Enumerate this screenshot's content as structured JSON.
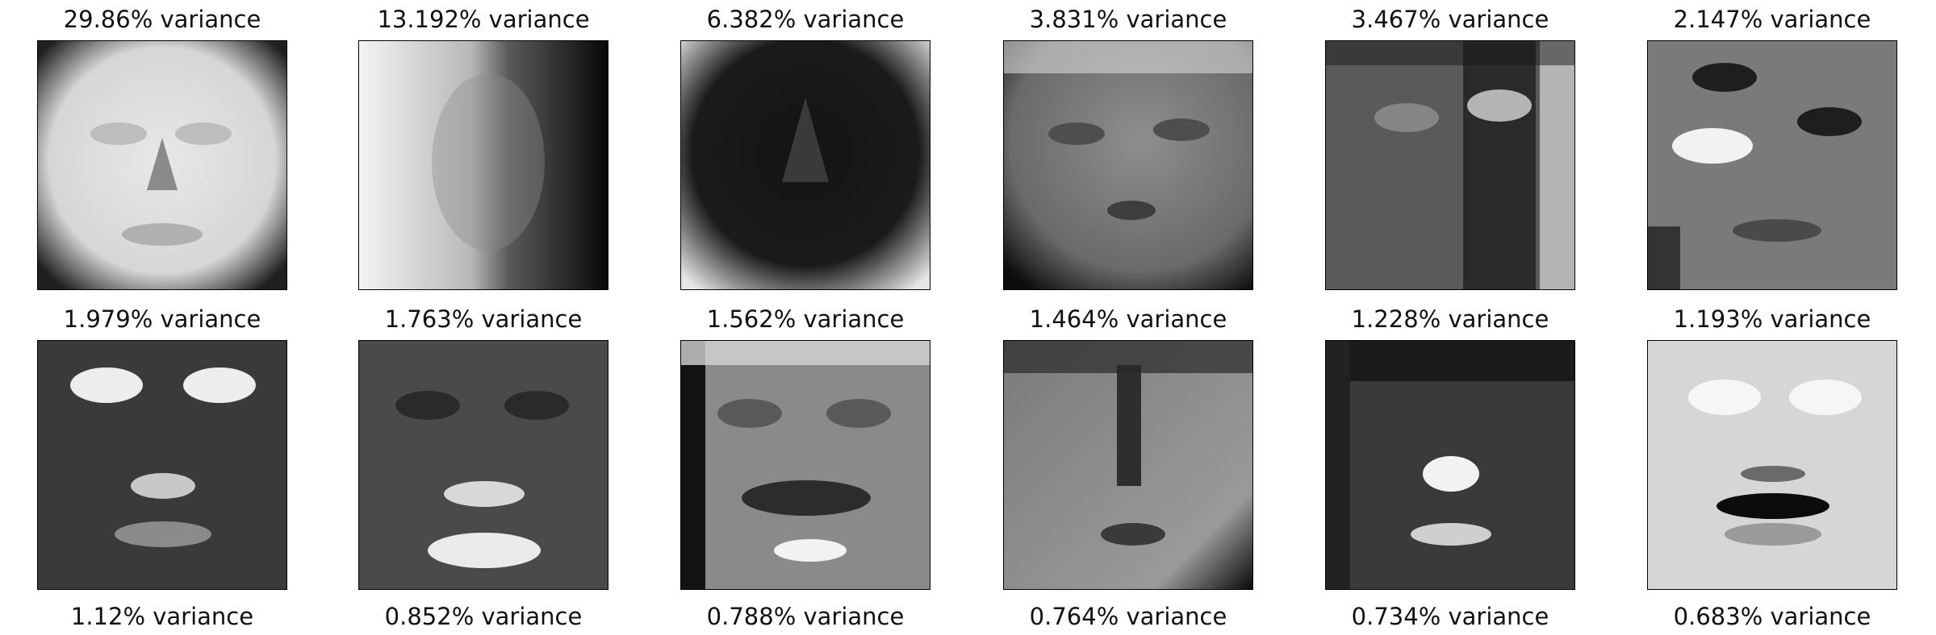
{
  "figure": {
    "rows": [
      {
        "panels": [
          {
            "title": "29.86% variance",
            "face_tone": "light",
            "below_label": "1.979% variance"
          },
          {
            "title": "13.192% variance",
            "face_tone": "split",
            "below_label": "1.763% variance"
          },
          {
            "title": "6.382% variance",
            "face_tone": "dark",
            "below_label": "1.562% variance"
          },
          {
            "title": "3.831% variance",
            "face_tone": "mid",
            "below_label": "1.464% variance"
          },
          {
            "title": "3.467% variance",
            "face_tone": "mid-dark",
            "below_label": "1.228% variance"
          },
          {
            "title": "2.147% variance",
            "face_tone": "mid",
            "below_label": "1.193% variance"
          }
        ]
      },
      {
        "panels": [
          {
            "face_tone": "dark",
            "below_label": "1.12% variance"
          },
          {
            "face_tone": "mid-dark",
            "below_label": "0.852% variance"
          },
          {
            "face_tone": "mid",
            "below_label": "0.788% variance"
          },
          {
            "face_tone": "mid",
            "below_label": "0.764% variance"
          },
          {
            "face_tone": "dark",
            "below_label": "0.734% variance"
          },
          {
            "face_tone": "light",
            "below_label": "0.683% variance"
          }
        ]
      }
    ],
    "colors": {
      "background": "#ffffff",
      "text": "#111111",
      "frame": "#000000"
    }
  }
}
